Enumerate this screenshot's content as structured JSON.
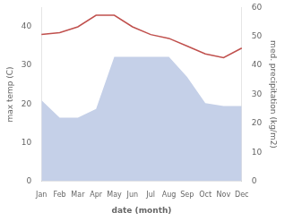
{
  "chart_data": {
    "type": "line",
    "xlabel": "date (month)",
    "ylabel": "max temp (C)",
    "y2label": "med. precipitation (kg/m2)",
    "categories": [
      "Jan",
      "Feb",
      "Mar",
      "Apr",
      "May",
      "Jun",
      "Jul",
      "Aug",
      "Sep",
      "Oct",
      "Nov",
      "Dec"
    ],
    "series": [
      {
        "type": "area",
        "color": "#c5d0e8",
        "axis": "y2",
        "values": [
          28,
          22,
          22,
          25,
          43,
          43,
          43,
          43,
          36,
          27,
          26,
          26
        ]
      },
      {
        "type": "line",
        "color": "#c0504d",
        "values": [
          38,
          38.5,
          40,
          43,
          43,
          40,
          38,
          37,
          35,
          33,
          32,
          34.5
        ]
      }
    ],
    "ylim": [
      0,
      45
    ],
    "yticks": [
      0,
      10,
      20,
      30,
      40
    ],
    "y2lim": [
      0,
      60
    ],
    "y2ticks": [
      0,
      10,
      20,
      30,
      40,
      50,
      60
    ],
    "grid": false
  }
}
